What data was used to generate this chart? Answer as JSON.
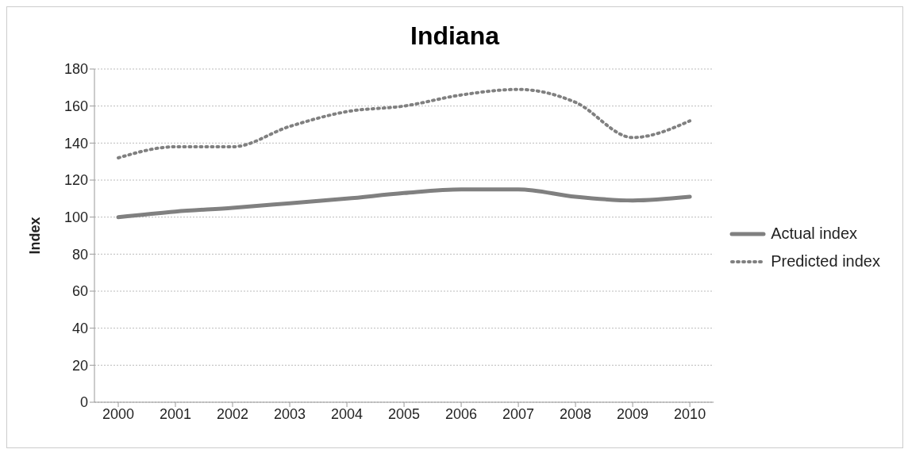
{
  "chart_data": {
    "type": "line",
    "title": "Indiana",
    "ylabel": "Index",
    "categories": [
      "2000",
      "2001",
      "2002",
      "2003",
      "2004",
      "2005",
      "2006",
      "2007",
      "2008",
      "2009",
      "2010"
    ],
    "series": [
      {
        "name": "Actual index",
        "color": "#808080",
        "line_style": "solid",
        "values": [
          100,
          103,
          105,
          107.5,
          110,
          113,
          115,
          115,
          111,
          109,
          111
        ]
      },
      {
        "name": "Predicted index",
        "color": "#808080",
        "line_style": "dotted",
        "values": [
          132,
          138,
          138,
          149,
          157,
          160,
          166,
          169,
          162,
          143,
          152
        ]
      }
    ],
    "ylim": [
      0,
      180
    ],
    "yticks": [
      0,
      20,
      40,
      60,
      80,
      100,
      120,
      140,
      160,
      180
    ],
    "grid": "y",
    "legend": "right",
    "marker": "none"
  }
}
